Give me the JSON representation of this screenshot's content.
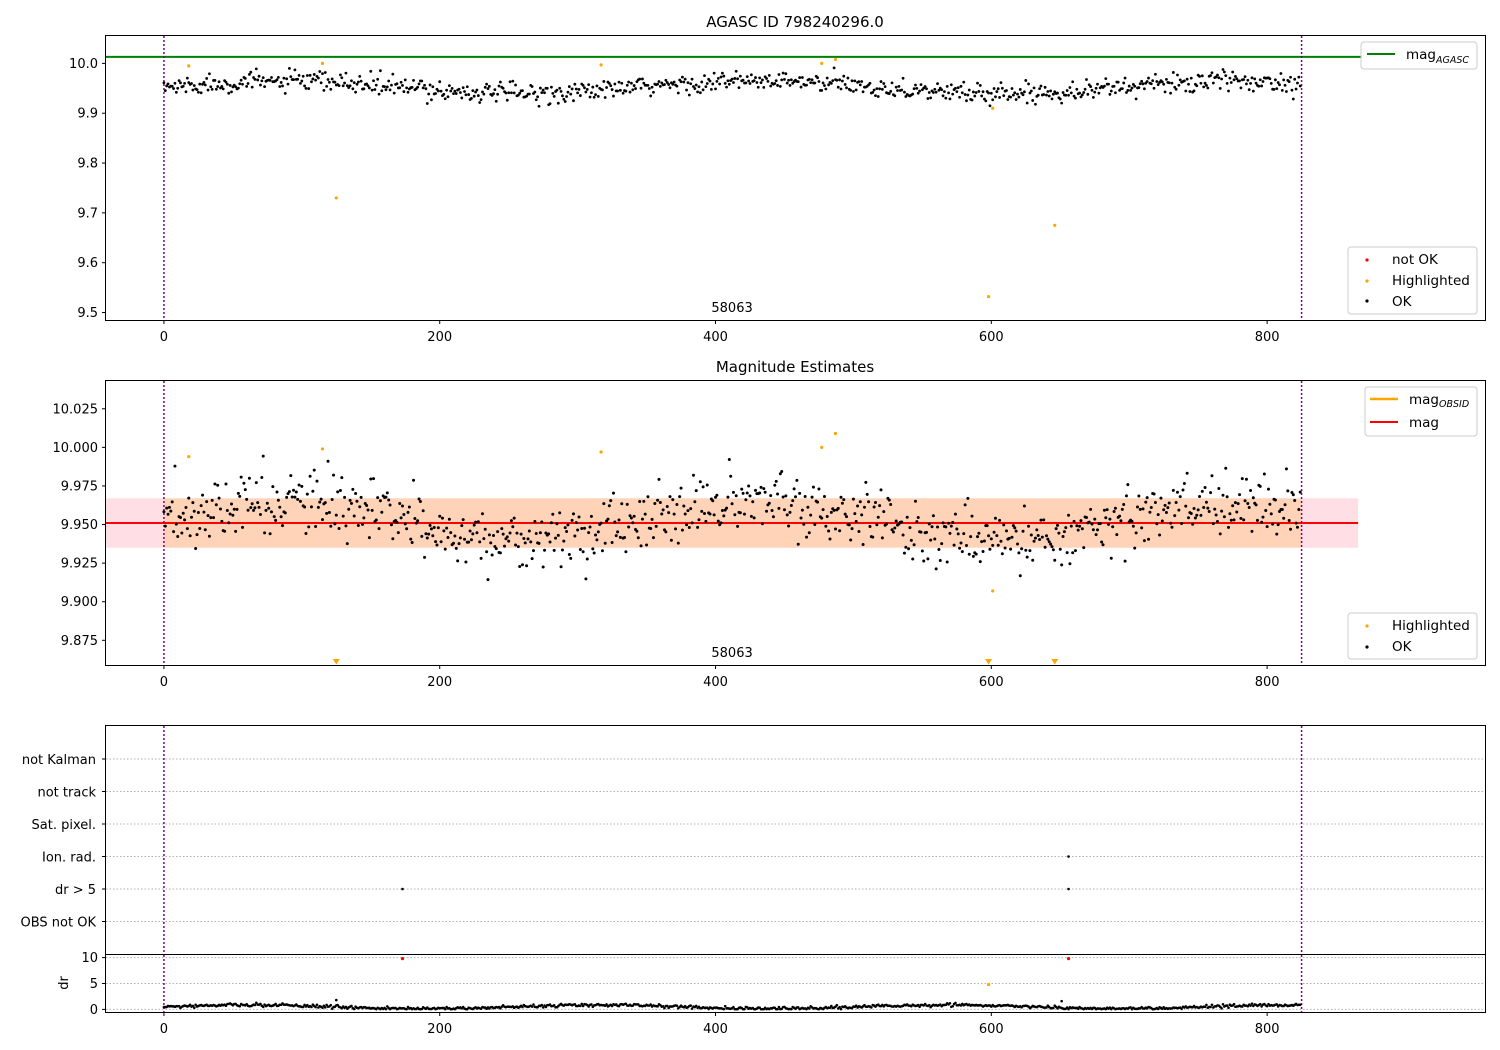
{
  "chart_data": [
    {
      "type": "scatter",
      "title": "AGASC ID 798240296.0",
      "xlim": [
        -42,
        958
      ],
      "ylim": [
        9.485,
        10.055
      ],
      "xticks": [
        0,
        200,
        400,
        600,
        800
      ],
      "yticks": [
        9.5,
        9.6,
        9.7,
        9.8,
        9.9,
        10.0
      ],
      "ytick_labels": [
        "9.5",
        "9.6",
        "9.7",
        "9.8",
        "9.9",
        "10.0"
      ],
      "vlines": [
        0,
        825
      ],
      "hline": {
        "name": "mag_AGASC",
        "value": 10.013,
        "color": "#008000"
      },
      "ok_series": {
        "name": "OK",
        "color": "#000000",
        "n": 825,
        "base": 9.952,
        "amplitude": 0.012,
        "noise": 0.013
      },
      "highlighted": {
        "name": "Highlighted",
        "color": "#ffa500",
        "x": [
          18,
          115,
          125,
          317,
          477,
          487,
          601,
          598,
          646
        ],
        "y": [
          9.995,
          10.0,
          9.73,
          9.997,
          10.0,
          10.008,
          9.91,
          9.532,
          9.675
        ]
      },
      "not_ok": {
        "name": "not OK",
        "color": "#ff0000",
        "x": [],
        "y": []
      },
      "annotation": {
        "text": "58063",
        "x": 412
      },
      "legend_top": [
        {
          "label": "mag",
          "sub": "AGASC",
          "color": "#008000"
        }
      ],
      "legend_bottom": [
        {
          "label": "not OK",
          "color": "#ff0000"
        },
        {
          "label": "Highlighted",
          "color": "#ffa500"
        },
        {
          "label": "OK",
          "color": "#000000"
        }
      ]
    },
    {
      "type": "scatter",
      "title": "Magnitude Estimates",
      "xlim": [
        -42,
        958
      ],
      "ylim": [
        9.859,
        10.043
      ],
      "xticks": [
        0,
        200,
        400,
        600,
        800
      ],
      "yticks": [
        9.875,
        9.9,
        9.925,
        9.95,
        9.975,
        10.0,
        10.025
      ],
      "ytick_labels": [
        "9.875",
        "9.900",
        "9.925",
        "9.950",
        "9.975",
        "10.000",
        "10.025"
      ],
      "vlines": [
        0,
        825
      ],
      "mag_line": {
        "name": "mag",
        "value": 9.951,
        "color": "#ff0000"
      },
      "mag_band": {
        "low": 9.935,
        "high": 9.967,
        "x_end": 866
      },
      "obsid_band": {
        "x_start": 0,
        "x_end": 825,
        "low": 9.935,
        "high": 9.967
      },
      "ok_series": {
        "name": "OK",
        "color": "#000000",
        "n": 825,
        "base": 9.952,
        "amplitude": 0.012,
        "noise": 0.013
      },
      "highlighted": {
        "name": "Highlighted",
        "color": "#ffa500",
        "x": [
          18,
          115,
          317,
          477,
          487,
          601
        ],
        "y": [
          9.994,
          9.999,
          9.997,
          10.0,
          10.009,
          9.907
        ]
      },
      "off_scale": {
        "x": [
          125,
          598,
          646
        ],
        "color": "#ffa500"
      },
      "annotation": {
        "text": "58063",
        "x": 412
      },
      "legend_top": [
        {
          "label": "mag",
          "sub": "OBSID",
          "color": "#ffa500"
        },
        {
          "label": "mag",
          "sub": "",
          "color": "#ff0000"
        }
      ],
      "legend_bottom": [
        {
          "label": "Highlighted",
          "color": "#ffa500"
        },
        {
          "label": "OK",
          "color": "#000000"
        }
      ]
    },
    {
      "type": "scatter",
      "title": "",
      "xlim": [
        -42,
        958
      ],
      "xticks": [
        0,
        200,
        400,
        600,
        800
      ],
      "vlines": [
        0,
        825
      ],
      "flags": [
        "not Kalman",
        "not track",
        "Sat. pixel.",
        "Ion. rad.",
        "dr > 5",
        "OBS not OK"
      ],
      "flag_points": [
        {
          "flag": "Ion. rad.",
          "x": 656
        },
        {
          "flag": "dr > 5",
          "x": 173
        },
        {
          "flag": "dr > 5",
          "x": 656
        }
      ]
    },
    {
      "type": "scatter",
      "title": "",
      "ylabel": "dr",
      "xlim": [
        -42,
        958
      ],
      "ylim": [
        -0.5,
        10.5
      ],
      "xticks": [
        0,
        200,
        400,
        600,
        800
      ],
      "yticks": [
        0,
        5,
        10
      ],
      "ytick_labels": [
        "0",
        "5",
        "10"
      ],
      "vlines": [
        0,
        825
      ],
      "ok_series": {
        "name": "OK",
        "color": "#000000",
        "n": 825,
        "base": 0.5,
        "amplitude": 0.35,
        "noise": 0.25
      },
      "not_ok": {
        "name": "not OK",
        "color": "#ff0000",
        "x": [
          173,
          656
        ],
        "y": [
          9.8,
          9.8
        ]
      },
      "highlighted": {
        "name": "Highlighted",
        "color": "#ffa500",
        "x": [
          598
        ],
        "y": [
          4.8
        ]
      },
      "extra_ok": {
        "x": [
          125,
          651
        ],
        "y": [
          1.8,
          1.6
        ]
      }
    }
  ]
}
